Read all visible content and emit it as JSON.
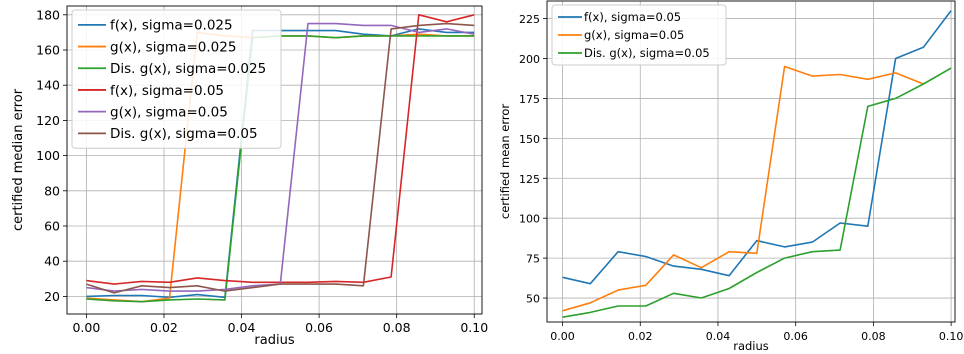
{
  "chart_data": [
    {
      "type": "line",
      "xlabel": "radius",
      "ylabel": "certified median error",
      "xlim": [
        -0.005,
        0.102
      ],
      "ylim": [
        10,
        185
      ],
      "grid": true,
      "legend_position": "top-left",
      "x_ticks": [
        "0.00",
        "0.02",
        "0.04",
        "0.06",
        "0.08",
        "0.10"
      ],
      "y_ticks": [
        "20",
        "40",
        "60",
        "80",
        "100",
        "120",
        "140",
        "160",
        "180"
      ],
      "x_tick_values": [
        0.0,
        0.02,
        0.04,
        0.06,
        0.08,
        0.1
      ],
      "y_tick_values": [
        20,
        40,
        60,
        80,
        100,
        120,
        140,
        160,
        180
      ],
      "x": [
        0.0,
        0.00714,
        0.01429,
        0.02143,
        0.02857,
        0.03571,
        0.04286,
        0.05,
        0.05714,
        0.06429,
        0.07143,
        0.07857,
        0.08571,
        0.09286,
        0.1
      ],
      "series": [
        {
          "name": "f(x), sigma=0.025",
          "color": "#1f77b4",
          "values": [
            20,
            20.5,
            20.5,
            19.5,
            21,
            19.5,
            171,
            171,
            171,
            171,
            169,
            168,
            172,
            170,
            170
          ]
        },
        {
          "name": "g(x), sigma=0.025",
          "color": "#ff7f0e",
          "values": [
            19,
            18,
            17,
            19,
            170,
            168,
            167,
            168,
            168,
            167,
            168,
            168,
            169,
            168,
            168
          ]
        },
        {
          "name": "Dis. g(x), sigma=0.025",
          "color": "#2ca02c",
          "values": [
            18.5,
            17.5,
            17,
            18,
            18.5,
            18,
            167,
            168,
            168,
            167,
            168,
            168,
            168,
            168,
            168
          ]
        },
        {
          "name": "f(x), sigma=0.05",
          "color": "#d62728",
          "values": [
            29,
            27,
            28.5,
            28,
            30.5,
            29,
            28,
            28,
            28,
            28.5,
            28,
            31,
            180,
            176,
            180
          ]
        },
        {
          "name": "g(x), sigma=0.05",
          "color": "#9467bd",
          "values": [
            25,
            23,
            24,
            23,
            23,
            24,
            26,
            27,
            175,
            175,
            174,
            174,
            170,
            172,
            169
          ]
        },
        {
          "name": "Dis. g(x), sigma=0.05",
          "color": "#8c564b",
          "values": [
            27,
            22,
            26,
            25,
            26,
            23,
            25,
            27,
            27,
            27,
            26,
            172,
            174,
            175,
            174
          ]
        }
      ]
    },
    {
      "type": "line",
      "xlabel": "radius",
      "ylabel": "certified mean error",
      "xlim": [
        -0.004,
        0.101
      ],
      "ylim": [
        35,
        236
      ],
      "grid": true,
      "legend_position": "top-left",
      "x_ticks": [
        "0.00",
        "0.02",
        "0.04",
        "0.06",
        "0.08",
        "0.10"
      ],
      "y_ticks": [
        "50",
        "75",
        "100",
        "125",
        "150",
        "175",
        "200",
        "225"
      ],
      "x_tick_values": [
        0.0,
        0.02,
        0.04,
        0.06,
        0.08,
        0.1
      ],
      "y_tick_values": [
        50,
        75,
        100,
        125,
        150,
        175,
        200,
        225
      ],
      "x": [
        0.0,
        0.00714,
        0.01429,
        0.02143,
        0.02857,
        0.03571,
        0.04286,
        0.05,
        0.05714,
        0.06429,
        0.07143,
        0.07857,
        0.08571,
        0.09286,
        0.1
      ],
      "series": [
        {
          "name": "f(x), sigma=0.05",
          "color": "#1f77b4",
          "values": [
            63,
            59,
            79,
            76,
            70,
            68,
            64,
            86,
            82,
            85,
            97,
            95,
            200,
            207,
            230
          ]
        },
        {
          "name": "g(x), sigma=0.05",
          "color": "#ff7f0e",
          "values": [
            42,
            47,
            55,
            58,
            77,
            69,
            79,
            78,
            195,
            189,
            190,
            187,
            191,
            184,
            null
          ]
        },
        {
          "name": "Dis. g(x), sigma=0.05",
          "color": "#2ca02c",
          "values": [
            38,
            41,
            45,
            45,
            53,
            50,
            56,
            66,
            75,
            79,
            80,
            170,
            175,
            184,
            194
          ]
        }
      ]
    }
  ]
}
